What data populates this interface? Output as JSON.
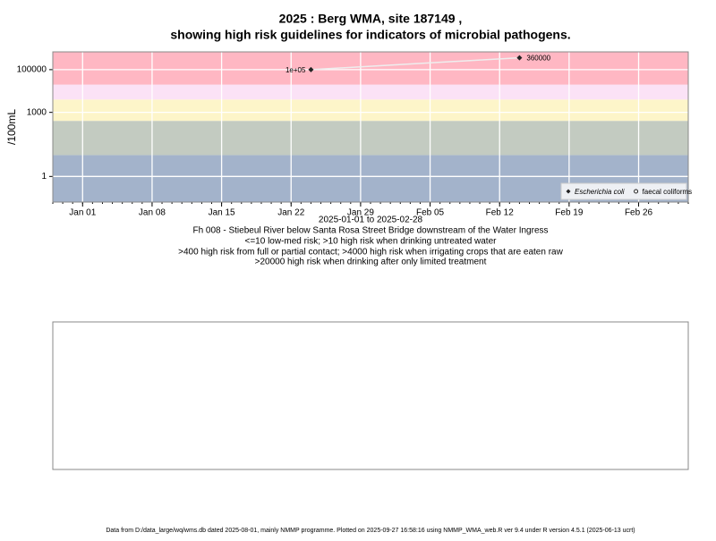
{
  "chart_data": {
    "type": "line",
    "title": "2025 : Berg WMA, site 187149 ,",
    "subtitle": "showing high risk guidelines for indicators of microbial pathogens.",
    "ylabel": "/100mL",
    "xlabel": "2025-01-01 to 2025-02-28",
    "notes": [
      "Fh 008 - Stiebeul River below Santa Rosa Street Bridge downstream of the Water Ingress",
      "<=10 low-med risk; >10 high risk when drinking untreated water",
      ">400 high risk from full or partial contact; >4000 high risk when irrigating crops that are eaten raw",
      ">20000 high risk when drinking after only limited treatment"
    ],
    "log_y": true,
    "grid": true,
    "legend": "bottom-right",
    "ylim": [
      0.063,
      680000
    ],
    "yticks": [
      1,
      1000,
      100000
    ],
    "xlim": [
      "2024-12-29",
      "2025-03-03"
    ],
    "xticks": [
      {
        "value": "2025-01-01",
        "label": "Jan 01"
      },
      {
        "value": "2025-01-08",
        "label": "Jan 08"
      },
      {
        "value": "2025-01-15",
        "label": "Jan 15"
      },
      {
        "value": "2025-01-22",
        "label": "Jan 22"
      },
      {
        "value": "2025-01-29",
        "label": "Jan 29"
      },
      {
        "value": "2025-02-05",
        "label": "Feb 05"
      },
      {
        "value": "2025-02-12",
        "label": "Feb 12"
      },
      {
        "value": "2025-02-19",
        "label": "Feb 19"
      },
      {
        "value": "2025-02-26",
        "label": "Feb 26"
      }
    ],
    "thresholds": [
      10,
      400,
      4000,
      20000
    ],
    "band_colors": [
      "#a3b3cb",
      "#c3cbc1",
      "#fdf5c9",
      "#fbe2f6",
      "#ffb7c3"
    ],
    "series": [
      {
        "name": "Escherichia coli",
        "color": "#222222",
        "line_color": "#eeeeee",
        "x": [
          "2025-01-24",
          "2025-02-14"
        ],
        "values": [
          100000,
          360000
        ],
        "value_labels": [
          "1e+05",
          "360000"
        ]
      },
      {
        "name": "faecal coliforms",
        "color": "#222222",
        "x": [],
        "values": []
      }
    ]
  },
  "footer": "Data from D:/data_large/wq/wms.db dated 2025-08-01, mainly NMMP programme. Plotted on 2025-09-27 16:58:16 using NMMP_WMA_web.R ver 9.4 under R version 4.5.1 (2025-06-13 ucrt)"
}
